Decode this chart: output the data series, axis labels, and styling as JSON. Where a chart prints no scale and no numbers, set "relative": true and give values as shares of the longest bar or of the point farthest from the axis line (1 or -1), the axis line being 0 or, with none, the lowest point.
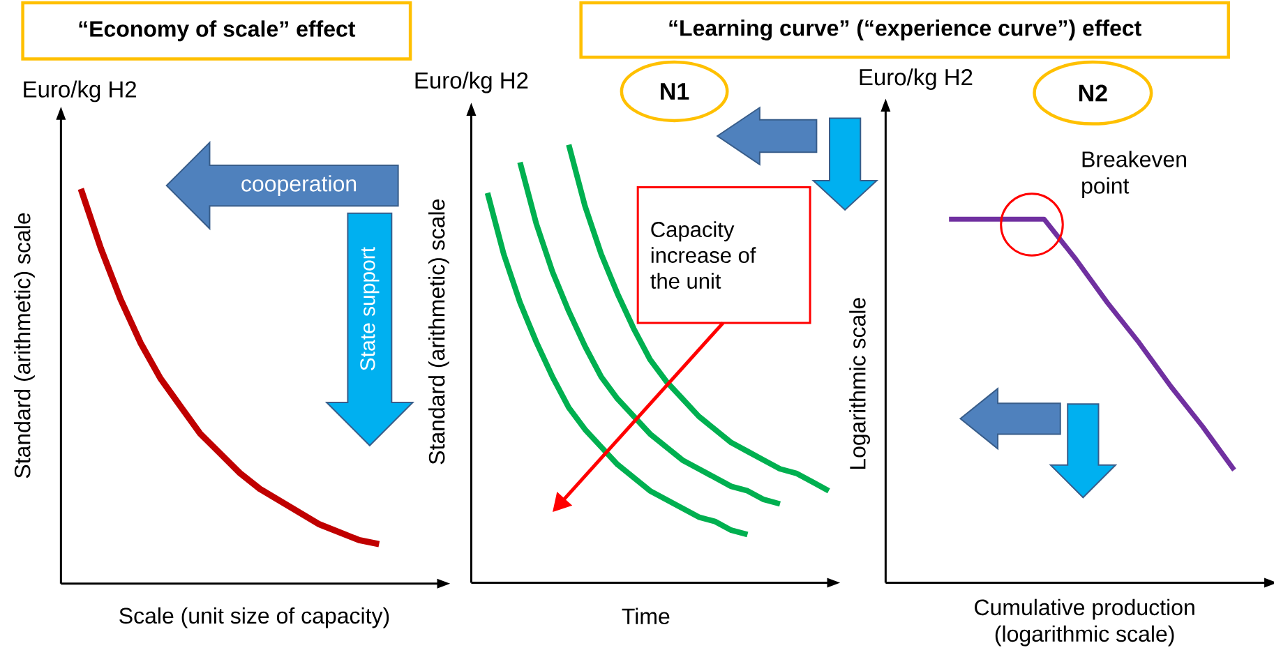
{
  "chart_data": [
    {
      "type": "line",
      "relative": true,
      "marker": "none",
      "title": "“Economy of scale” effect",
      "xlabel": "Scale (unit size of capacity)",
      "ylabel": "Standard (arithmetic) scale",
      "annotations": [
        "Euro/kg H2",
        "cooperation",
        "State support"
      ],
      "categories": [
        null,
        null,
        null,
        null,
        null,
        null,
        null,
        null,
        null,
        null,
        null,
        null,
        null,
        null,
        null,
        null,
        null,
        null,
        null,
        null
      ],
      "series": [
        {
          "color": "#c00000",
          "values": [
            null,
            1.0,
            0.85,
            0.72,
            0.61,
            0.52,
            0.45,
            0.38,
            0.33,
            0.28,
            0.24,
            0.21,
            0.18,
            0.15,
            0.13,
            0.11,
            0.1,
            null,
            null,
            null
          ]
        }
      ]
    },
    {
      "type": "line",
      "relative": true,
      "marker": "none",
      "title": "“Learning curve” (“experience curve”) effect",
      "xlabel": "Time",
      "ylabel": "Standard (arithmetic) scale",
      "annotations": [
        "Euro/kg H2",
        "N1",
        "Capacity increase of the unit"
      ],
      "categories": [
        null,
        null,
        null,
        null,
        null,
        null,
        null,
        null,
        null,
        null,
        null,
        null,
        null,
        null,
        null,
        null,
        null,
        null,
        null,
        null,
        null,
        null,
        null
      ],
      "series": [
        {
          "color": "#00b050",
          "values": [
            null,
            0.89,
            0.75,
            0.64,
            0.55,
            0.47,
            0.4,
            0.35,
            0.31,
            0.27,
            0.24,
            0.21,
            0.19,
            0.17,
            0.15,
            0.14,
            0.12,
            0.11,
            null,
            null,
            null,
            null,
            null
          ]
        },
        {
          "color": "#00b050",
          "values": [
            null,
            null,
            null,
            0.96,
            0.82,
            0.71,
            0.62,
            0.54,
            0.47,
            0.42,
            0.38,
            0.34,
            0.31,
            0.28,
            0.26,
            0.24,
            0.22,
            0.21,
            0.19,
            0.18,
            null,
            null,
            null
          ]
        },
        {
          "color": "#00b050",
          "values": [
            null,
            null,
            null,
            null,
            null,
            null,
            1.0,
            0.86,
            0.75,
            0.66,
            0.58,
            0.51,
            0.46,
            0.42,
            0.38,
            0.35,
            0.32,
            0.3,
            0.28,
            0.26,
            0.25,
            0.23,
            0.21
          ]
        }
      ]
    },
    {
      "type": "line",
      "relative": true,
      "marker": "none",
      "xlabel": "Cumulative production (logarithmic scale)",
      "ylabel": "Logarithmic scale",
      "annotations": [
        "Euro/kg H2",
        "N2",
        "Breakeven point"
      ],
      "categories": [
        null,
        null,
        null,
        null,
        null,
        null,
        null,
        null,
        null,
        null,
        null,
        null,
        null
      ],
      "series": [
        {
          "color": "#7030a0",
          "values": [
            null,
            null,
            1.0,
            1.0,
            1.0,
            1.0,
            0.89,
            0.77,
            0.66,
            0.54,
            0.43,
            0.31,
            null
          ]
        }
      ]
    }
  ]
}
